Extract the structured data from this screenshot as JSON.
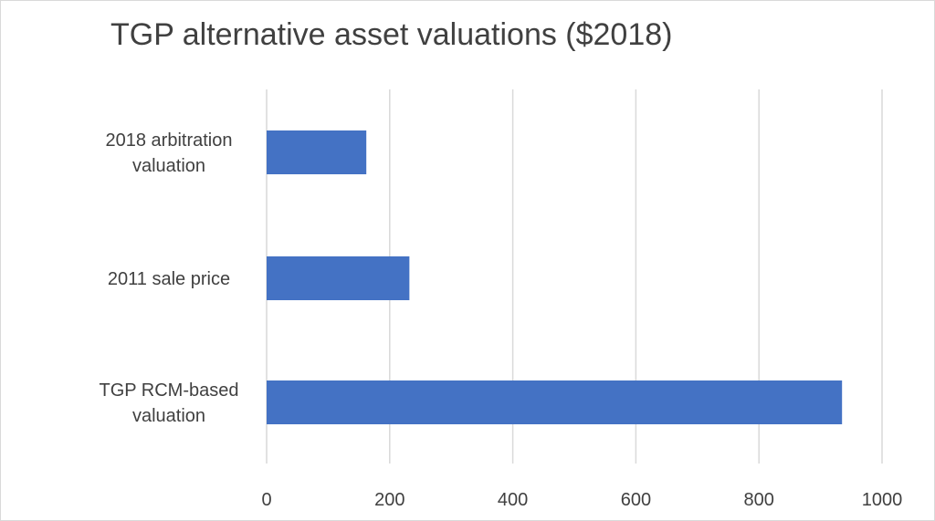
{
  "chart_data": {
    "type": "bar",
    "orientation": "horizontal",
    "title": "TGP alternative asset valuations ($2018)",
    "categories": [
      [
        "2018 arbitration",
        "valuation"
      ],
      [
        "2011 sale price"
      ],
      [
        "TGP RCM-based",
        "valuation"
      ]
    ],
    "values": [
      162,
      232,
      935
    ],
    "xlim": [
      0,
      1000
    ],
    "x_ticks": [
      "0",
      "200",
      "400",
      "600",
      "800",
      "1000"
    ],
    "grid": true,
    "legend": "none",
    "bar_color": "#4472c4"
  }
}
